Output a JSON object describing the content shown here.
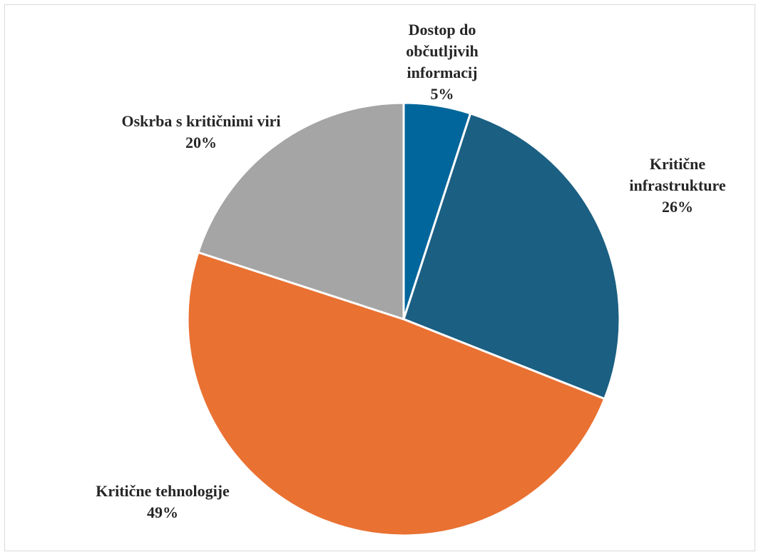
{
  "chart_data": {
    "type": "pie",
    "categories": [
      "Dostop do občutljivih informacij",
      "Kritične infrastrukture",
      "Kritične tehnologije",
      "Oskrba s kritičnimi viri"
    ],
    "values": [
      5,
      26,
      49,
      20
    ],
    "value_labels": [
      "5%",
      "26%",
      "49%",
      "20%"
    ],
    "colors": [
      "#00669b",
      "#1b5f82",
      "#e97132",
      "#a5a5a5"
    ]
  }
}
